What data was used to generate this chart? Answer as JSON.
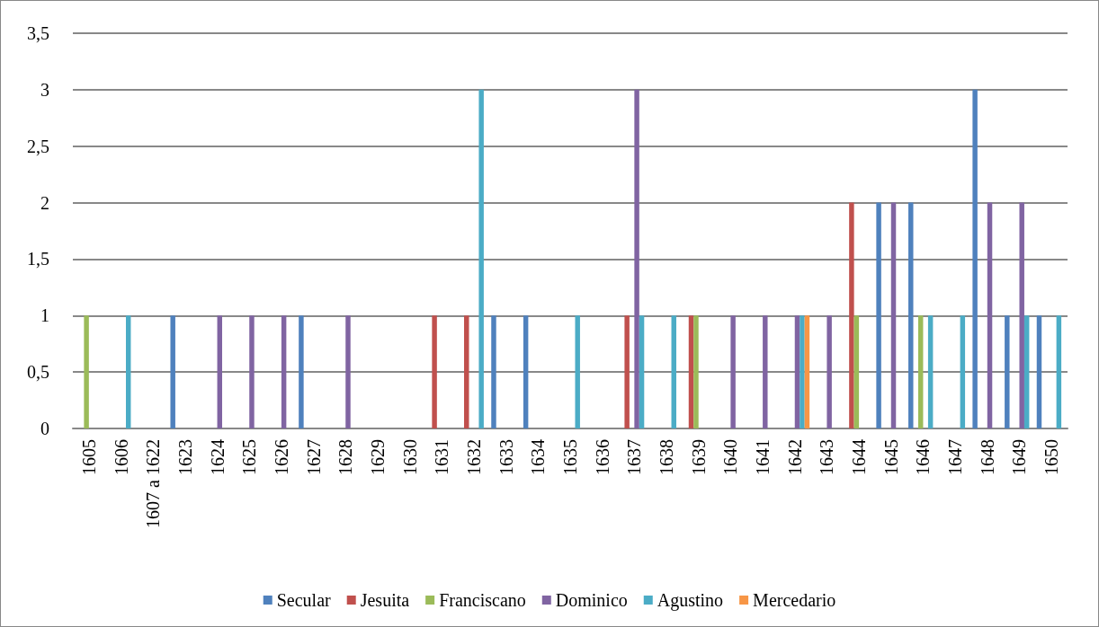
{
  "chart_data": {
    "type": "bar",
    "categories": [
      "1605",
      "1606",
      "1607 a 1622",
      "1623",
      "1624",
      "1625",
      "1626",
      "1627",
      "1628",
      "1629",
      "1630",
      "1631",
      "1632",
      "1633",
      "1634",
      "1635",
      "1636",
      "1637",
      "1638",
      "1639",
      "1640",
      "1641",
      "1642",
      "1643",
      "1644",
      "1645",
      "1646",
      "1647",
      "1648",
      "1649",
      "1650"
    ],
    "series": [
      {
        "name": "Secular",
        "color": "#4f81bd",
        "values": [
          null,
          null,
          null,
          1,
          null,
          null,
          null,
          1,
          null,
          null,
          null,
          null,
          null,
          1,
          1,
          null,
          null,
          null,
          null,
          null,
          null,
          null,
          null,
          null,
          null,
          2,
          2,
          null,
          3,
          1,
          1
        ]
      },
      {
        "name": "Jesuita",
        "color": "#c0504d",
        "values": [
          null,
          null,
          null,
          null,
          null,
          null,
          null,
          null,
          null,
          null,
          null,
          1,
          1,
          null,
          null,
          null,
          null,
          1,
          null,
          1,
          null,
          null,
          null,
          null,
          2,
          null,
          null,
          null,
          null,
          null,
          null
        ]
      },
      {
        "name": "Franciscano",
        "color": "#9bbb59",
        "values": [
          1,
          null,
          null,
          null,
          null,
          null,
          null,
          null,
          null,
          null,
          null,
          null,
          null,
          null,
          null,
          null,
          null,
          null,
          null,
          1,
          null,
          null,
          null,
          null,
          1,
          null,
          1,
          null,
          null,
          null,
          null
        ]
      },
      {
        "name": "Dominico",
        "color": "#8064a2",
        "values": [
          null,
          null,
          null,
          null,
          1,
          1,
          1,
          null,
          1,
          null,
          null,
          null,
          null,
          null,
          null,
          null,
          null,
          3,
          null,
          null,
          1,
          1,
          1,
          1,
          null,
          2,
          null,
          null,
          2,
          2,
          null
        ]
      },
      {
        "name": "Agustino",
        "color": "#4bacc6",
        "values": [
          null,
          1,
          null,
          null,
          null,
          null,
          null,
          null,
          null,
          null,
          null,
          null,
          3,
          null,
          null,
          1,
          null,
          1,
          1,
          null,
          null,
          null,
          1,
          null,
          null,
          null,
          1,
          1,
          null,
          1,
          1
        ]
      },
      {
        "name": "Mercedario",
        "color": "#f79646",
        "values": [
          null,
          null,
          null,
          null,
          null,
          null,
          null,
          null,
          null,
          null,
          null,
          null,
          null,
          null,
          null,
          null,
          null,
          null,
          null,
          null,
          null,
          null,
          1,
          null,
          null,
          null,
          null,
          null,
          null,
          null,
          null
        ]
      }
    ],
    "ylim": [
      0,
      3.5
    ],
    "yticks": [
      0,
      {
        "value": 0.5,
        "label": "0,5"
      },
      1,
      {
        "value": 1.5,
        "label": "1,5"
      },
      2,
      {
        "value": 2.5,
        "label": "2,5"
      },
      3,
      {
        "value": 3.5,
        "label": "3,5"
      }
    ],
    "grid": "y",
    "legend": "bottom"
  }
}
